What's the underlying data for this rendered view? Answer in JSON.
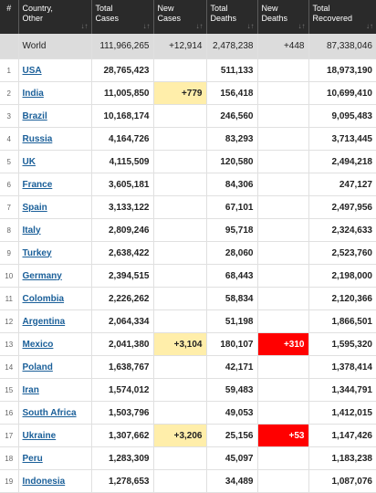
{
  "headers": [
    {
      "line1": "#",
      "line2": "",
      "sort": false
    },
    {
      "line1": "Country,",
      "line2": "Other",
      "sort": true
    },
    {
      "line1": "Total",
      "line2": "Cases",
      "sort": true
    },
    {
      "line1": "New",
      "line2": "Cases",
      "sort": true
    },
    {
      "line1": "Total",
      "line2": "Deaths",
      "sort": true
    },
    {
      "line1": "New",
      "line2": "Deaths",
      "sort": true
    },
    {
      "line1": "Total",
      "line2": "Recovered",
      "sort": true
    }
  ],
  "world": {
    "num": "",
    "country": "World",
    "total_cases": "111,966,265",
    "new_cases": "+12,914",
    "total_deaths": "2,478,238",
    "new_deaths": "+448",
    "total_recovered": "87,338,046"
  },
  "rows": [
    {
      "num": "1",
      "country": "USA",
      "total_cases": "28,765,423",
      "new_cases": "",
      "total_deaths": "511,133",
      "new_deaths": "",
      "total_recovered": "18,973,190"
    },
    {
      "num": "2",
      "country": "India",
      "total_cases": "11,005,850",
      "new_cases": "+779",
      "total_deaths": "156,418",
      "new_deaths": "",
      "total_recovered": "10,699,410"
    },
    {
      "num": "3",
      "country": "Brazil",
      "total_cases": "10,168,174",
      "new_cases": "",
      "total_deaths": "246,560",
      "new_deaths": "",
      "total_recovered": "9,095,483"
    },
    {
      "num": "4",
      "country": "Russia",
      "total_cases": "4,164,726",
      "new_cases": "",
      "total_deaths": "83,293",
      "new_deaths": "",
      "total_recovered": "3,713,445"
    },
    {
      "num": "5",
      "country": "UK",
      "total_cases": "4,115,509",
      "new_cases": "",
      "total_deaths": "120,580",
      "new_deaths": "",
      "total_recovered": "2,494,218"
    },
    {
      "num": "6",
      "country": "France",
      "total_cases": "3,605,181",
      "new_cases": "",
      "total_deaths": "84,306",
      "new_deaths": "",
      "total_recovered": "247,127"
    },
    {
      "num": "7",
      "country": "Spain",
      "total_cases": "3,133,122",
      "new_cases": "",
      "total_deaths": "67,101",
      "new_deaths": "",
      "total_recovered": "2,497,956"
    },
    {
      "num": "8",
      "country": "Italy",
      "total_cases": "2,809,246",
      "new_cases": "",
      "total_deaths": "95,718",
      "new_deaths": "",
      "total_recovered": "2,324,633"
    },
    {
      "num": "9",
      "country": "Turkey",
      "total_cases": "2,638,422",
      "new_cases": "",
      "total_deaths": "28,060",
      "new_deaths": "",
      "total_recovered": "2,523,760"
    },
    {
      "num": "10",
      "country": "Germany",
      "total_cases": "2,394,515",
      "new_cases": "",
      "total_deaths": "68,443",
      "new_deaths": "",
      "total_recovered": "2,198,000"
    },
    {
      "num": "11",
      "country": "Colombia",
      "total_cases": "2,226,262",
      "new_cases": "",
      "total_deaths": "58,834",
      "new_deaths": "",
      "total_recovered": "2,120,366"
    },
    {
      "num": "12",
      "country": "Argentina",
      "total_cases": "2,064,334",
      "new_cases": "",
      "total_deaths": "51,198",
      "new_deaths": "",
      "total_recovered": "1,866,501"
    },
    {
      "num": "13",
      "country": "Mexico",
      "total_cases": "2,041,380",
      "new_cases": "+3,104",
      "total_deaths": "180,107",
      "new_deaths": "+310",
      "total_recovered": "1,595,320"
    },
    {
      "num": "14",
      "country": "Poland",
      "total_cases": "1,638,767",
      "new_cases": "",
      "total_deaths": "42,171",
      "new_deaths": "",
      "total_recovered": "1,378,414"
    },
    {
      "num": "15",
      "country": "Iran",
      "total_cases": "1,574,012",
      "new_cases": "",
      "total_deaths": "59,483",
      "new_deaths": "",
      "total_recovered": "1,344,791"
    },
    {
      "num": "16",
      "country": "South Africa",
      "total_cases": "1,503,796",
      "new_cases": "",
      "total_deaths": "49,053",
      "new_deaths": "",
      "total_recovered": "1,412,015"
    },
    {
      "num": "17",
      "country": "Ukraine",
      "total_cases": "1,307,662",
      "new_cases": "+3,206",
      "total_deaths": "25,156",
      "new_deaths": "+53",
      "total_recovered": "1,147,426"
    },
    {
      "num": "18",
      "country": "Peru",
      "total_cases": "1,283,309",
      "new_cases": "",
      "total_deaths": "45,097",
      "new_deaths": "",
      "total_recovered": "1,183,238"
    },
    {
      "num": "19",
      "country": "Indonesia",
      "total_cases": "1,278,653",
      "new_cases": "",
      "total_deaths": "34,489",
      "new_deaths": "",
      "total_recovered": "1,087,076"
    }
  ],
  "colors": {
    "header_bg": "#2a2a2a",
    "world_bg": "#dcdcdc",
    "new_cases_bg": "#ffeeaa",
    "new_deaths_bg": "#ff0000",
    "link": "#1a5f99"
  }
}
